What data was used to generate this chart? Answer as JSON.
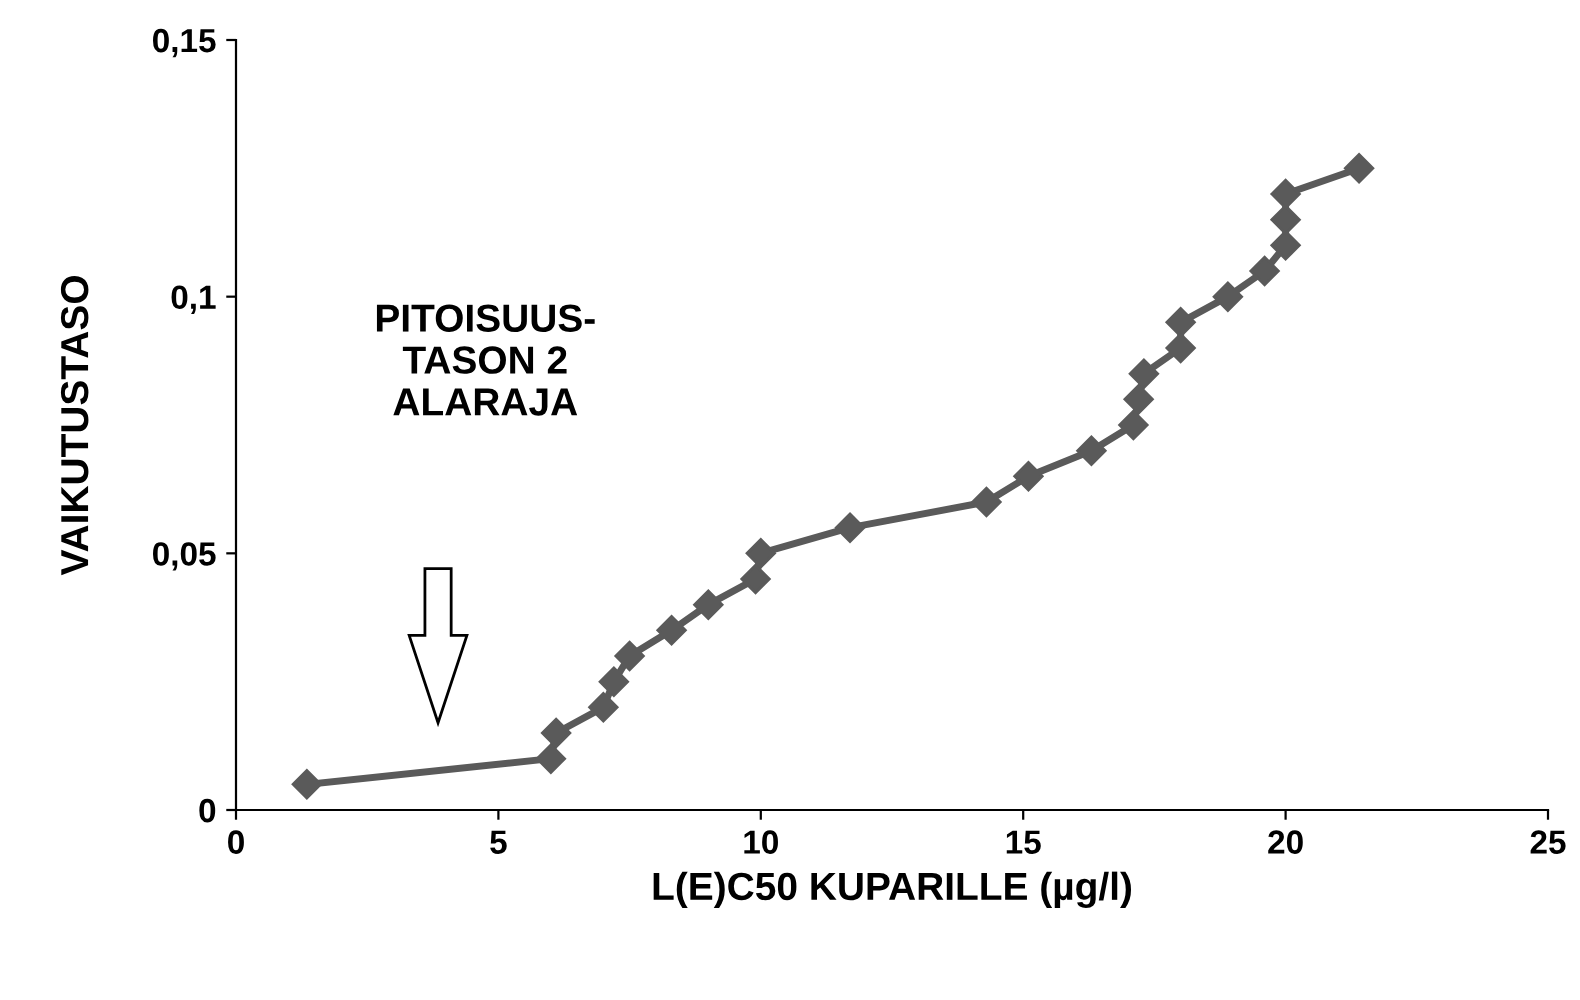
{
  "chart_data": {
    "type": "line",
    "xlabel": "L(E)C50 KUPARILLE (µg/l)",
    "ylabel": "VAIKUTUSTASO",
    "annotations": [
      "PITOISUUS-\nTASON 2\nALARAJA"
    ],
    "x": [
      1.35,
      6.0,
      6.1,
      7.0,
      7.2,
      7.5,
      8.3,
      9.0,
      9.9,
      10.0,
      11.7,
      14.3,
      15.1,
      16.3,
      17.1,
      17.2,
      17.3,
      18.0,
      18.0,
      18.9,
      19.6,
      20.0,
      20.0,
      20.0,
      21.4
    ],
    "series": [
      {
        "color": "#5a5a5a",
        "values": [
          0.005,
          0.01,
          0.015,
          0.02,
          0.025,
          0.03,
          0.035,
          0.04,
          0.045,
          0.05,
          0.055,
          0.06,
          0.065,
          0.07,
          0.075,
          0.08,
          0.085,
          0.09,
          0.095,
          0.1,
          0.105,
          0.11,
          0.115,
          0.12,
          0.125
        ]
      }
    ],
    "xlim": [
      0,
      25
    ],
    "xticks": [
      0,
      5,
      10,
      15,
      20,
      25
    ],
    "ylim": [
      0,
      0.15
    ],
    "yticks": [
      {
        "value": 0,
        "label": "0"
      },
      {
        "value": 0.05,
        "label": "0,05"
      },
      {
        "value": 0.1,
        "label": "0,1"
      },
      {
        "value": 0.15,
        "label": "0,15"
      }
    ],
    "marker": "diamond",
    "line_style": "solid",
    "grid": false
  }
}
